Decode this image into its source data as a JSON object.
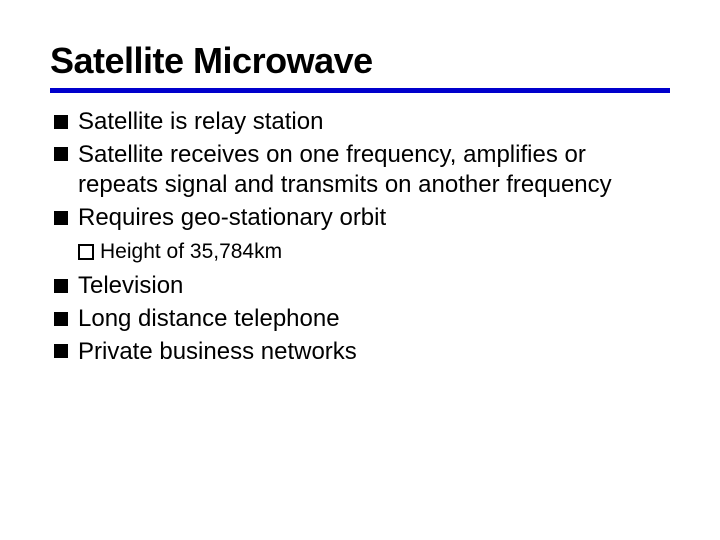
{
  "slide": {
    "title": "Satellite Microwave",
    "title_fontsize": 36,
    "title_color": "#000000",
    "rule_color": "#0000cc",
    "rule_height": 5,
    "background_color": "#ffffff",
    "body_fontsize": 24,
    "sub_fontsize": 21,
    "bullets": [
      {
        "text": "Satellite is relay station"
      },
      {
        "text": "Satellite receives on one frequency, amplifies or repeats signal and transmits on another frequency"
      },
      {
        "text": "Requires geo-stationary orbit"
      },
      {
        "text": "Television"
      },
      {
        "text": "Long distance telephone"
      },
      {
        "text": "Private business networks"
      }
    ],
    "sub_bullets": [
      {
        "text": "Height of 35,784km"
      }
    ]
  }
}
